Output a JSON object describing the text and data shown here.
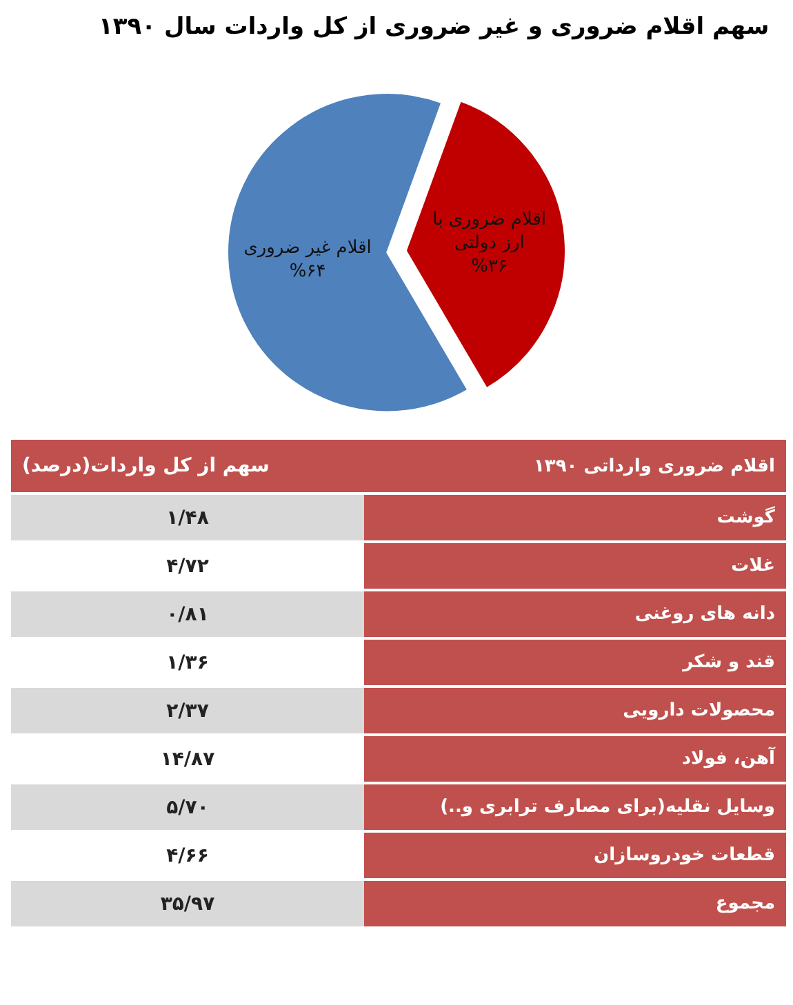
{
  "chart_data": [
    {
      "type": "pie",
      "title": "سهم اقلام ضروری و غیر ضروری از کل واردات سال ۱۳۹۰",
      "categories": [
        "اقلام ضروری با\nارز دولتی",
        "اقلام غیر ضروری"
      ],
      "values": [
        36,
        64
      ],
      "value_labels": [
        "%۳۶",
        "%۶۴"
      ],
      "colors": [
        "#c00000",
        "#4f81bd"
      ],
      "legend": false
    },
    {
      "type": "other",
      "xlabel": "سهم از کل واردات(درصد)",
      "ylabel": "اقلام ضروری وارداتی ۱۳۹۰",
      "categories": [
        "گوشت",
        "غلات",
        "دانه های روغنی",
        "قند و شکر",
        "محصولات دارویی",
        "آهن، فولاد",
        "وسایل نقلیه(برای مصارف ترابری و..)",
        "قطعات خودروسازان",
        "مجموع"
      ],
      "value_labels": [
        "۱/۴۸",
        "۴/۷۲",
        "۰/۸۱",
        "۱/۳۶",
        "۲/۳۷",
        "۱۴/۸۷",
        "۵/۷۰",
        "۴/۶۶",
        "۳۵/۹۷"
      ]
    }
  ]
}
